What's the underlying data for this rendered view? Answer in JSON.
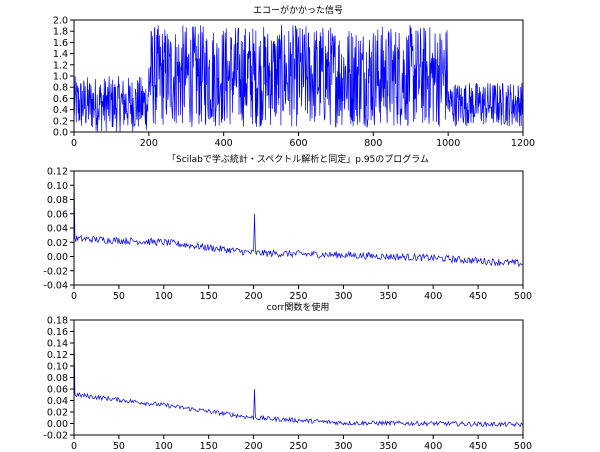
{
  "window": {
    "background": "#ffffff"
  },
  "style": {
    "line_color": "#0000ff",
    "axis_color": "#000000"
  },
  "chart_data": [
    {
      "type": "line",
      "title": "エコーがかかった信号",
      "xlabel": "",
      "ylabel": "",
      "xlim": [
        0,
        1200
      ],
      "ylim": [
        0.0,
        2.0
      ],
      "xticks": [
        0,
        200,
        400,
        600,
        800,
        1000,
        1200
      ],
      "xtick_labels": [
        "0",
        "200",
        "400",
        "600",
        "800",
        "1000",
        "1200"
      ],
      "yticks": [
        0.0,
        0.2,
        0.4,
        0.6,
        0.8,
        1.0,
        1.2,
        1.4,
        1.6,
        1.8,
        2.0
      ],
      "ytick_labels": [
        "0.0",
        "0.2",
        "0.4",
        "0.6",
        "0.8",
        "1.0",
        "1.2",
        "1.4",
        "1.6",
        "1.8",
        "2.0"
      ],
      "grid": false,
      "series": [
        {
          "color": "#0000ff",
          "segments": [
            {
              "x_start": 0,
              "x_end": 200,
              "mean": 0.5,
              "amplitude": 0.5
            },
            {
              "x_start": 200,
              "x_end": 1000,
              "mean": 1.0,
              "amplitude": 0.92
            },
            {
              "x_start": 1000,
              "x_end": 1200,
              "mean": 0.5,
              "amplitude": 0.4
            }
          ]
        }
      ]
    },
    {
      "type": "line",
      "title": "「Scilabで学ぶ統計・スペクトル解析と同定」p.95のプログラム",
      "xlabel": "",
      "ylabel": "",
      "xlim": [
        0,
        500
      ],
      "ylim": [
        -0.04,
        0.12
      ],
      "xticks": [
        0,
        50,
        100,
        150,
        200,
        250,
        300,
        350,
        400,
        450,
        500
      ],
      "xtick_labels": [
        "0",
        "50",
        "100",
        "150",
        "200",
        "250",
        "300",
        "350",
        "400",
        "450",
        "500"
      ],
      "yticks": [
        -0.04,
        -0.02,
        0.0,
        0.02,
        0.04,
        0.06,
        0.08,
        0.1,
        0.12
      ],
      "ytick_labels": [
        "-0.04",
        "-0.02",
        "0.00",
        "0.02",
        "0.04",
        "0.06",
        "0.08",
        "0.10",
        "0.12"
      ],
      "grid": false,
      "series": [
        {
          "color": "#0000ff",
          "start_value": 0.12,
          "trend_points": [
            [
              2,
              0.025
            ],
            [
              100,
              0.02
            ],
            [
              200,
              0.005
            ],
            [
              300,
              0.002
            ],
            [
              400,
              -0.002
            ],
            [
              500,
              -0.01
            ]
          ],
          "noise_amplitude": 0.005,
          "spikes": [
            [
              201,
              0.06
            ]
          ]
        }
      ]
    },
    {
      "type": "line",
      "title": "corr関数を使用",
      "xlabel": "",
      "ylabel": "",
      "xlim": [
        0,
        500
      ],
      "ylim": [
        -0.02,
        0.18
      ],
      "xticks": [
        0,
        50,
        100,
        150,
        200,
        250,
        300,
        350,
        400,
        450,
        500
      ],
      "xtick_labels": [
        "0",
        "50",
        "100",
        "150",
        "200",
        "250",
        "300",
        "350",
        "400",
        "450",
        "500"
      ],
      "yticks": [
        -0.02,
        0.0,
        0.02,
        0.04,
        0.06,
        0.08,
        0.1,
        0.12,
        0.14,
        0.16,
        0.18
      ],
      "ytick_labels": [
        "-0.02",
        "0.00",
        "0.02",
        "0.04",
        "0.06",
        "0.08",
        "0.10",
        "0.12",
        "0.14",
        "0.16",
        "0.18"
      ],
      "grid": false,
      "series": [
        {
          "color": "#0000ff",
          "start_value": 0.18,
          "trend_points": [
            [
              2,
              0.05
            ],
            [
              100,
              0.032
            ],
            [
              200,
              0.01
            ],
            [
              300,
              0.001
            ],
            [
              400,
              0.0
            ],
            [
              500,
              -0.002
            ]
          ],
          "noise_amplitude": 0.004,
          "spikes": [
            [
              201,
              0.06
            ]
          ]
        }
      ]
    }
  ]
}
